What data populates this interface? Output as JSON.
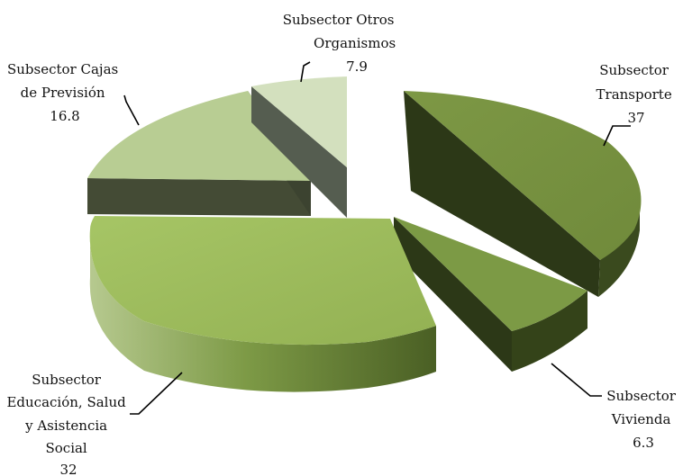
{
  "chart_data": {
    "type": "pie",
    "variant": "3d-exploded",
    "title": "",
    "slices": [
      {
        "label_lines": [
          "Subsector",
          "Transporte"
        ],
        "value_text": "37",
        "value": 37,
        "color": "#77913f"
      },
      {
        "label_lines": [
          "Subsector",
          "Vivienda"
        ],
        "value_text": "6.3",
        "value": 6.3,
        "color": "#7c9a45"
      },
      {
        "label_lines": [
          "Subsector",
          "Educación, Salud",
          "y Asistencia",
          "Social"
        ],
        "value_text": "32",
        "value": 32,
        "color": "#9bbb59"
      },
      {
        "label_lines": [
          "Subsector Cajas",
          "de Previsión"
        ],
        "value_text": "16.8",
        "value": 16.8,
        "color": "#b8cd93"
      },
      {
        "label_lines": [
          "Subsector Otros",
          "Organismos"
        ],
        "value_text": "7.9",
        "value": 7.9,
        "color": "#d3e0be"
      }
    ],
    "legend": "none",
    "data_labels": "outside-with-leader-lines"
  }
}
